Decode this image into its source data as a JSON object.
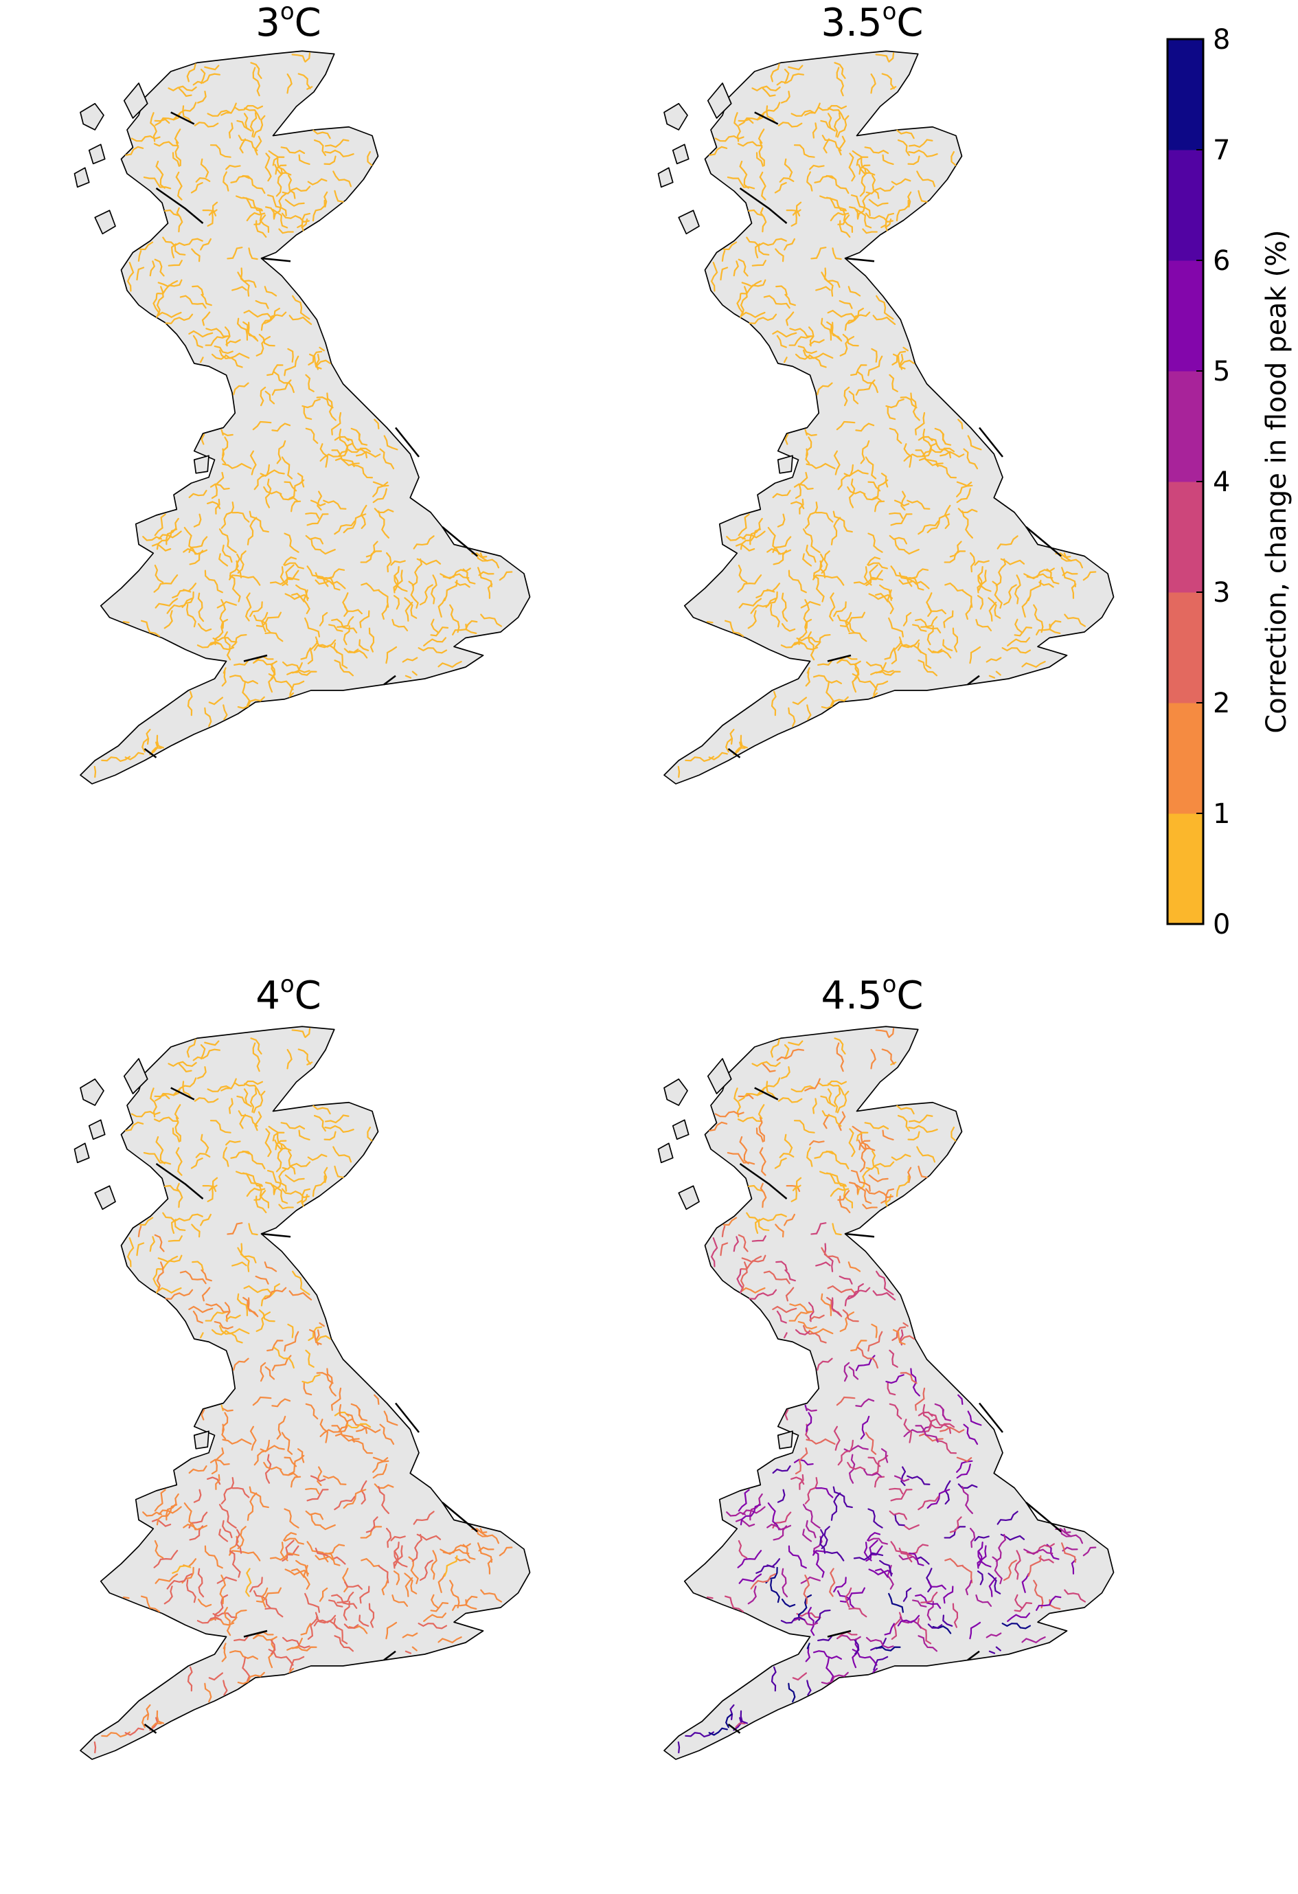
{
  "panels": [
    {
      "title_base": "3",
      "title_sup": "o",
      "title_unit": "C",
      "intensity": 0.15
    },
    {
      "title_base": "3.5",
      "title_sup": "o",
      "title_unit": "C",
      "intensity": 0.3
    },
    {
      "title_base": "4",
      "title_sup": "o",
      "title_unit": "C",
      "intensity": 1.6
    },
    {
      "title_base": "4.5",
      "title_sup": "o",
      "title_unit": "C",
      "intensity": 4.4
    }
  ],
  "colorbar": {
    "label": "Correction, change in flood peak (%)",
    "ticks": [
      "0",
      "1",
      "2",
      "3",
      "4",
      "5",
      "6",
      "7",
      "8"
    ],
    "bins": [
      {
        "from": 0,
        "to": 1,
        "color": "#fbb72c"
      },
      {
        "from": 1,
        "to": 2,
        "color": "#f58b41"
      },
      {
        "from": 2,
        "to": 3,
        "color": "#e3695f"
      },
      {
        "from": 3,
        "to": 4,
        "color": "#cd467b"
      },
      {
        "from": 4,
        "to": 5,
        "color": "#a8239a"
      },
      {
        "from": 5,
        "to": 6,
        "color": "#8306ab"
      },
      {
        "from": 6,
        "to": 7,
        "color": "#5203a3"
      },
      {
        "from": 7,
        "to": 8,
        "color": "#0d0887"
      }
    ]
  },
  "colors": {
    "land": "#e6e6e6",
    "coast": "#000000",
    "background": "#ffffff"
  }
}
